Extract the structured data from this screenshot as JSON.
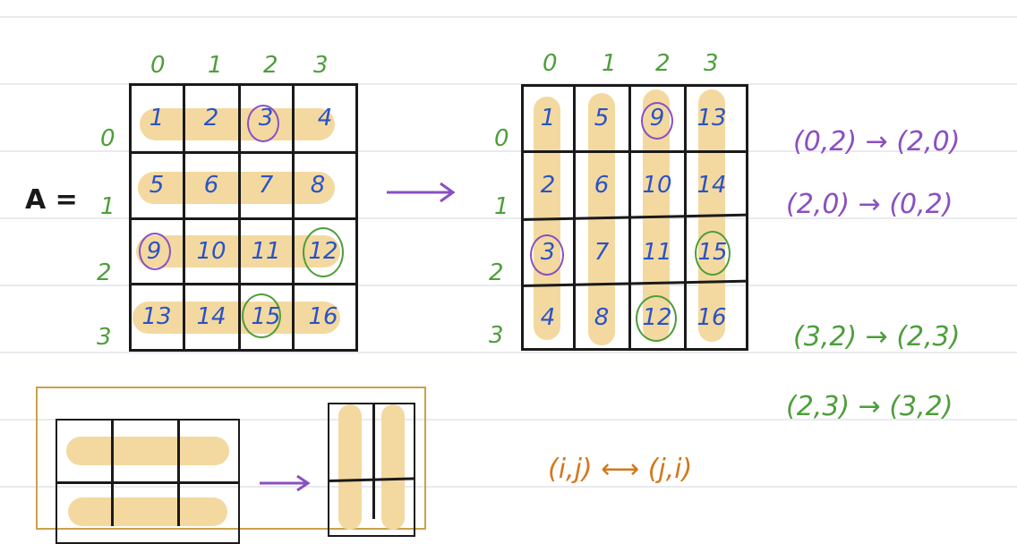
{
  "left_matrix": {
    "label": "A =",
    "col_indices": [
      "0",
      "1",
      "2",
      "3"
    ],
    "row_indices": [
      "0",
      "1",
      "2",
      "3"
    ],
    "rows": [
      [
        "1",
        "2",
        "3",
        "4"
      ],
      [
        "5",
        "6",
        "7",
        "8"
      ],
      [
        "9",
        "10",
        "11",
        "12"
      ],
      [
        "13",
        "14",
        "15",
        "16"
      ]
    ],
    "circled_purple": [
      "3",
      "9"
    ],
    "circled_green": [
      "12",
      "15"
    ]
  },
  "right_matrix": {
    "col_indices": [
      "0",
      "1",
      "2",
      "3"
    ],
    "row_indices": [
      "0",
      "1",
      "2",
      "3"
    ],
    "rows": [
      [
        "1",
        "5",
        "9",
        "13"
      ],
      [
        "2",
        "6",
        "10",
        "14"
      ],
      [
        "3",
        "7",
        "11",
        "15"
      ],
      [
        "4",
        "8",
        "12",
        "16"
      ]
    ],
    "circled_purple": [
      "9",
      "3"
    ],
    "circled_green": [
      "15",
      "12"
    ]
  },
  "mappings": {
    "purple": [
      "(0,2) → (2,0)",
      "(2,0) → (0,2)"
    ],
    "green": [
      "(3,2) → (2,3)",
      "(2,3) → (3,2)"
    ],
    "orange": "(i,j) ⟷ (j,i)"
  },
  "colors": {
    "highlight": "#f3d9a0",
    "number": "#2a53c4",
    "index": "#4d9e3a",
    "purple": "#8a4fc2",
    "orange": "#d2781f",
    "frame": "#c9a24a"
  }
}
